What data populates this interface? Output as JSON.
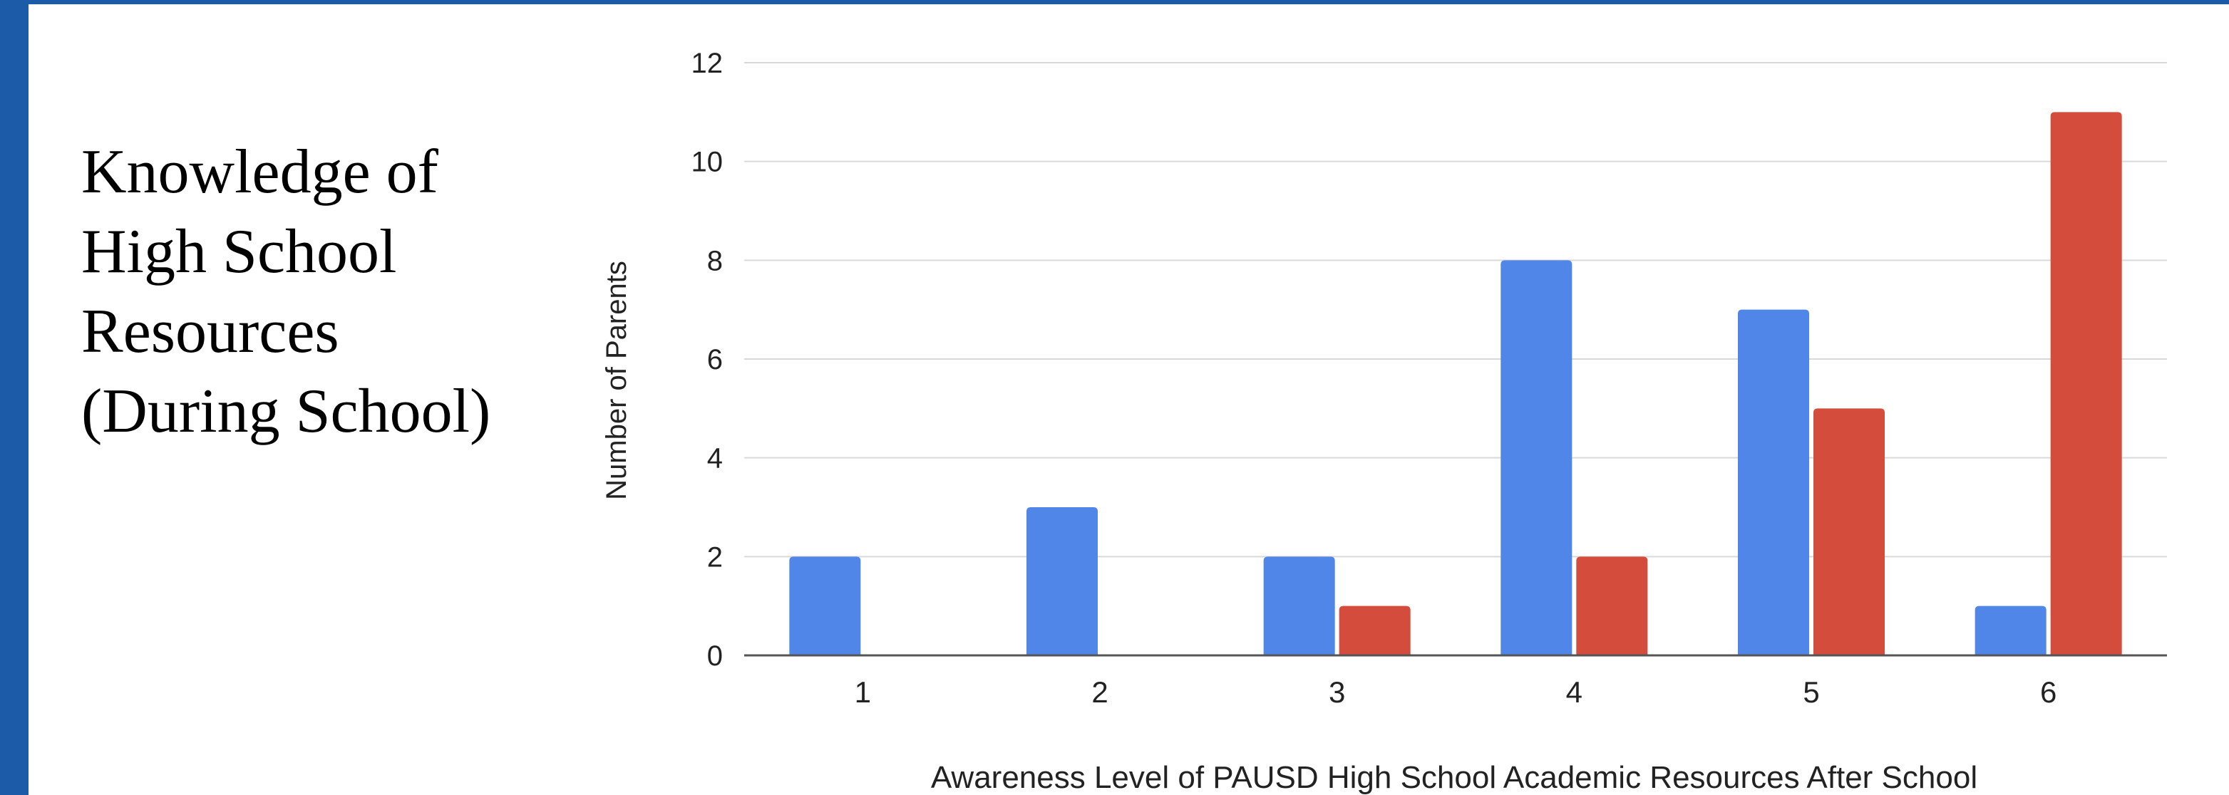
{
  "side_title": {
    "lines": [
      "Knowledge of",
      "High School",
      "Resources",
      "(During School)"
    ]
  },
  "chart_data": {
    "type": "bar",
    "title": "",
    "xlabel": "Awareness Level of PAUSD High School Academic Resources After School",
    "ylabel": "Number of Parents",
    "categories": [
      "1",
      "2",
      "3",
      "4",
      "5",
      "6"
    ],
    "ylim": [
      0,
      12
    ],
    "yticks": [
      0,
      2,
      4,
      6,
      8,
      10,
      12
    ],
    "grid": true,
    "legend": "none",
    "series": [
      {
        "color": "#4f86e8",
        "values": [
          2,
          3,
          2,
          8,
          7,
          1
        ]
      },
      {
        "color": "#d44c3c",
        "values": [
          0,
          0,
          1,
          2,
          5,
          11
        ]
      }
    ]
  }
}
